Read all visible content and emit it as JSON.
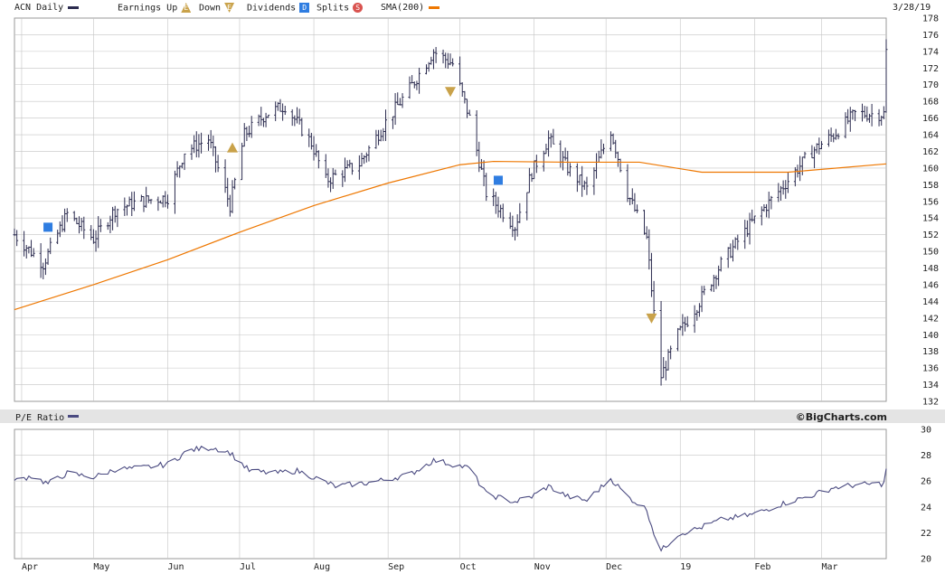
{
  "header": {
    "title": "ACN Daily",
    "date": "3/28/19",
    "legend": {
      "earnings_up": "Earnings Up",
      "down": "Down",
      "dividends": "Dividends",
      "splits": "Splits",
      "sma": "SMA(200)"
    },
    "glyphs": {
      "earnings": "E",
      "dividend": "D",
      "split": "S"
    }
  },
  "lower_panel": {
    "title": "P/E Ratio",
    "credit": "©BigCharts.com"
  },
  "colors": {
    "price": "#2b2b4f",
    "sma": "#ee7700",
    "pe": "#4a4a80",
    "grid": "#c4c4c4",
    "earnings": "#c9a24a",
    "dividend": "#2f7de1",
    "split": "#d9534f"
  },
  "chart_data": [
    {
      "type": "ohlc",
      "title": "ACN Daily",
      "ylim": [
        132,
        178
      ],
      "y_ticks": [
        132,
        134,
        136,
        138,
        140,
        142,
        144,
        146,
        148,
        150,
        152,
        154,
        156,
        158,
        160,
        162,
        164,
        166,
        168,
        170,
        172,
        174,
        176,
        178
      ],
      "x_range": [
        "2018-03-29",
        "2019-03-28"
      ],
      "x_ticks": [
        "Apr",
        "May",
        "Jun",
        "Jul",
        "Aug",
        "Sep",
        "Oct",
        "Nov",
        "Dec",
        "19",
        "Feb",
        "Mar"
      ],
      "x_tick_dates": [
        "2018-04-01",
        "2018-05-01",
        "2018-06-01",
        "2018-07-01",
        "2018-08-01",
        "2018-09-01",
        "2018-10-01",
        "2018-11-01",
        "2018-12-01",
        "2019-01-01",
        "2019-02-01",
        "2019-03-01"
      ],
      "close_approx": [
        [
          "2018-03-29",
          152.0
        ],
        [
          "2018-04-10",
          148.5
        ],
        [
          "2018-04-20",
          154.5
        ],
        [
          "2018-05-01",
          151.5
        ],
        [
          "2018-05-10",
          155.0
        ],
        [
          "2018-05-20",
          156.0
        ],
        [
          "2018-06-01",
          156.5
        ],
        [
          "2018-06-08",
          162.0
        ],
        [
          "2018-06-18",
          163.5
        ],
        [
          "2018-06-27",
          155.5
        ],
        [
          "2018-07-03",
          164.0
        ],
        [
          "2018-07-12",
          166.5
        ],
        [
          "2018-07-20",
          167.5
        ],
        [
          "2018-07-31",
          163.0
        ],
        [
          "2018-08-06",
          158.5
        ],
        [
          "2018-08-20",
          160.5
        ],
        [
          "2018-08-31",
          165.5
        ],
        [
          "2018-09-10",
          169.5
        ],
        [
          "2018-09-20",
          174.0
        ],
        [
          "2018-09-28",
          172.5
        ],
        [
          "2018-10-05",
          166.0
        ],
        [
          "2018-10-12",
          157.0
        ],
        [
          "2018-10-24",
          153.0
        ],
        [
          "2018-10-31",
          159.5
        ],
        [
          "2018-11-07",
          163.5
        ],
        [
          "2018-11-15",
          160.0
        ],
        [
          "2018-11-23",
          157.5
        ],
        [
          "2018-12-03",
          164.5
        ],
        [
          "2018-12-10",
          157.0
        ],
        [
          "2018-12-18",
          151.5
        ],
        [
          "2018-12-21",
          142.5
        ],
        [
          "2018-12-24",
          135.0
        ],
        [
          "2018-12-31",
          140.0
        ],
        [
          "2019-01-08",
          143.5
        ],
        [
          "2019-01-18",
          148.5
        ],
        [
          "2019-01-31",
          153.5
        ],
        [
          "2019-02-12",
          157.5
        ],
        [
          "2019-02-25",
          162.0
        ],
        [
          "2019-03-06",
          164.0
        ],
        [
          "2019-03-15",
          166.5
        ],
        [
          "2019-03-27",
          166.5
        ],
        [
          "2019-03-28",
          174.0
        ]
      ],
      "sma_200": [
        [
          "2018-03-29",
          143.0
        ],
        [
          "2018-05-01",
          146.0
        ],
        [
          "2018-06-01",
          149.0
        ],
        [
          "2018-07-01",
          152.3
        ],
        [
          "2018-08-01",
          155.5
        ],
        [
          "2018-09-01",
          158.2
        ],
        [
          "2018-10-01",
          160.4
        ],
        [
          "2018-10-15",
          160.8
        ],
        [
          "2018-11-15",
          160.7
        ],
        [
          "2018-12-15",
          160.7
        ],
        [
          "2019-01-10",
          159.5
        ],
        [
          "2019-02-15",
          159.5
        ],
        [
          "2019-03-28",
          160.5
        ]
      ],
      "earnings_markers": [
        [
          "2018-06-28",
          "up"
        ],
        [
          "2018-09-27",
          "down"
        ],
        [
          "2018-12-20",
          "down"
        ]
      ],
      "dividend_markers": [
        "2018-04-12",
        "2018-10-17"
      ]
    },
    {
      "type": "line",
      "title": "P/E Ratio",
      "ylim": [
        20,
        30
      ],
      "y_ticks": [
        20,
        22,
        24,
        26,
        28,
        30
      ],
      "series": [
        {
          "name": "P/E Ratio",
          "points": [
            [
              "2018-03-29",
              26.0
            ],
            [
              "2018-04-05",
              26.4
            ],
            [
              "2018-04-12",
              25.8
            ],
            [
              "2018-04-20",
              26.6
            ],
            [
              "2018-05-01",
              26.3
            ],
            [
              "2018-05-10",
              26.9
            ],
            [
              "2018-05-20",
              27.0
            ],
            [
              "2018-06-01",
              27.3
            ],
            [
              "2018-06-10",
              28.4
            ],
            [
              "2018-06-20",
              28.6
            ],
            [
              "2018-06-27",
              28.2
            ],
            [
              "2018-07-05",
              26.8
            ],
            [
              "2018-07-15",
              26.6
            ],
            [
              "2018-07-25",
              26.8
            ],
            [
              "2018-08-01",
              26.3
            ],
            [
              "2018-08-10",
              25.6
            ],
            [
              "2018-08-25",
              25.9
            ],
            [
              "2018-09-10",
              26.5
            ],
            [
              "2018-09-20",
              27.6
            ],
            [
              "2018-09-28",
              27.3
            ],
            [
              "2018-10-05",
              27.0
            ],
            [
              "2018-10-12",
              25.0
            ],
            [
              "2018-10-24",
              24.4
            ],
            [
              "2018-10-31",
              24.8
            ],
            [
              "2018-11-07",
              25.6
            ],
            [
              "2018-11-15",
              24.8
            ],
            [
              "2018-11-23",
              24.5
            ],
            [
              "2018-12-03",
              26.2
            ],
            [
              "2018-12-10",
              24.8
            ],
            [
              "2018-12-18",
              23.8
            ],
            [
              "2018-12-21",
              22.0
            ],
            [
              "2018-12-24",
              20.6
            ],
            [
              "2018-12-31",
              21.9
            ],
            [
              "2019-01-08",
              22.3
            ],
            [
              "2019-01-18",
              23.0
            ],
            [
              "2019-01-31",
              23.4
            ],
            [
              "2019-02-12",
              24.2
            ],
            [
              "2019-02-25",
              24.9
            ],
            [
              "2019-03-06",
              25.5
            ],
            [
              "2019-03-15",
              25.7
            ],
            [
              "2019-03-27",
              25.8
            ],
            [
              "2019-03-28",
              27.0
            ]
          ]
        }
      ]
    }
  ]
}
